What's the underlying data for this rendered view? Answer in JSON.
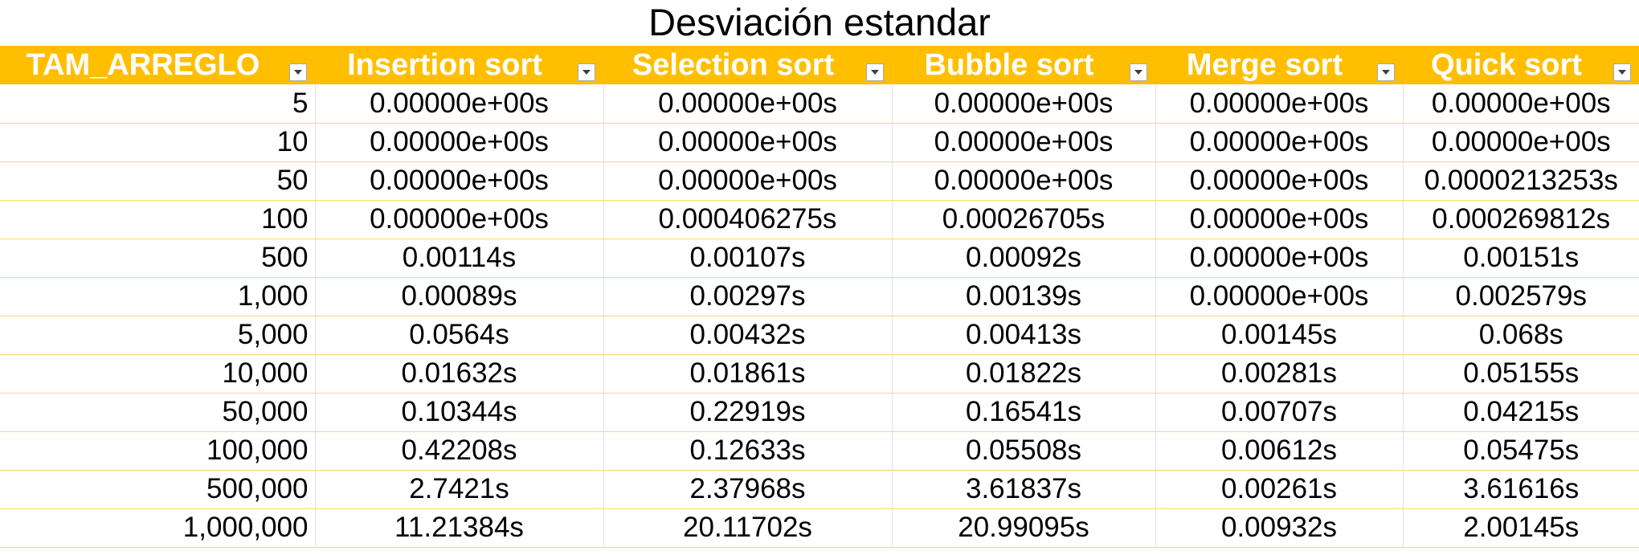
{
  "title": "Desviación estandar",
  "columns": [
    "TAM_ARREGLO",
    "Insertion sort",
    "Selection sort",
    "Bubble sort",
    "Merge sort",
    "Quick sort"
  ],
  "rows": [
    [
      "5",
      "0.00000e+00s",
      "0.00000e+00s",
      "0.00000e+00s",
      "0.00000e+00s",
      "0.00000e+00s"
    ],
    [
      "10",
      "0.00000e+00s",
      "0.00000e+00s",
      "0.00000e+00s",
      "0.00000e+00s",
      "0.00000e+00s"
    ],
    [
      "50",
      "0.00000e+00s",
      "0.00000e+00s",
      "0.00000e+00s",
      "0.00000e+00s",
      "0.0000213253s"
    ],
    [
      "100",
      "0.00000e+00s",
      "0.000406275s",
      "0.00026705s",
      "0.00000e+00s",
      "0.000269812s"
    ],
    [
      "500",
      "0.00114s",
      "0.00107s",
      "0.00092s",
      "0.00000e+00s",
      "0.00151s"
    ],
    [
      "1,000",
      "0.00089s",
      "0.00297s",
      "0.00139s",
      "0.00000e+00s",
      "0.002579s"
    ],
    [
      "5,000",
      "0.0564s",
      "0.00432s",
      "0.00413s",
      "0.00145s",
      "0.068s"
    ],
    [
      "10,000",
      "0.01632s",
      "0.01861s",
      "0.01822s",
      "0.00281s",
      "0.05155s"
    ],
    [
      "50,000",
      "0.10344s",
      "0.22919s",
      "0.16541s",
      "0.00707s",
      "0.04215s"
    ],
    [
      "100,000",
      "0.42208s",
      "0.12633s",
      "0.05508s",
      "0.00612s",
      "0.05475s"
    ],
    [
      "500,000",
      "2.7421s",
      "2.37968s",
      "3.61837s",
      "0.00261s",
      "3.61616s"
    ],
    [
      "1,000,000",
      "11.21384s",
      "20.11702s",
      "20.99095s",
      "0.00932s",
      "2.00145s"
    ]
  ],
  "colors": {
    "header_bg": "#ffbf00",
    "header_text": "#ffffff",
    "row_border": "#ffd966"
  },
  "icons": {
    "filter": "filter-dropdown-icon"
  }
}
